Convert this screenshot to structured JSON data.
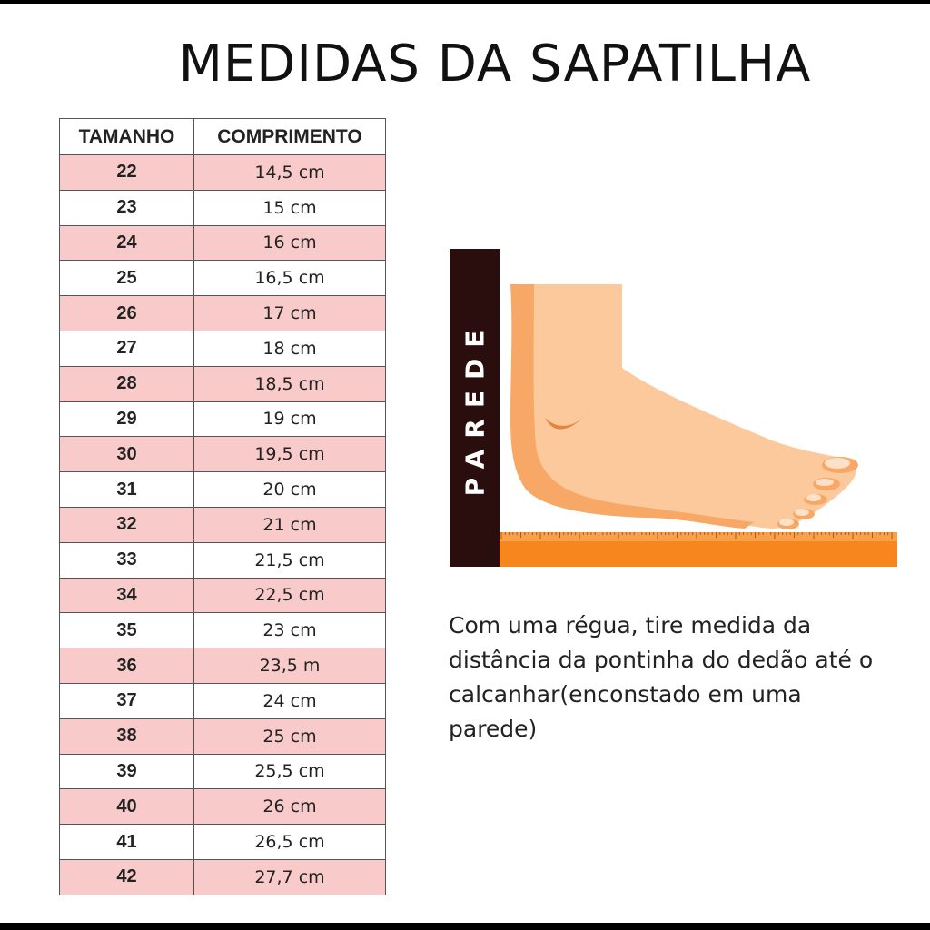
{
  "title": "MEDIDAS DA SAPATILHA",
  "table": {
    "headers": [
      "TAMANHO",
      "COMPRIMENTO"
    ],
    "rows": [
      [
        "22",
        "14,5 cm"
      ],
      [
        "23",
        "15 cm"
      ],
      [
        "24",
        "16 cm"
      ],
      [
        "25",
        "16,5 cm"
      ],
      [
        "26",
        "17 cm"
      ],
      [
        "27",
        "18 cm"
      ],
      [
        "28",
        "18,5 cm"
      ],
      [
        "29",
        "19 cm"
      ],
      [
        "30",
        "19,5 cm"
      ],
      [
        "31",
        "20 cm"
      ],
      [
        "32",
        "21 cm"
      ],
      [
        "33",
        "21,5 cm"
      ],
      [
        "34",
        "22,5 cm"
      ],
      [
        "35",
        "23 cm"
      ],
      [
        "36",
        "23,5 m"
      ],
      [
        "37",
        "24 cm"
      ],
      [
        "38",
        "25 cm"
      ],
      [
        "39",
        "25,5 cm"
      ],
      [
        "40",
        "26 cm"
      ],
      [
        "41",
        "26,5 cm"
      ],
      [
        "42",
        "27,7 cm"
      ]
    ],
    "stripe_color": "#f8caca"
  },
  "illustration": {
    "wall_label": "PAREDE",
    "wall_color": "#2a0d0d",
    "ruler_color": "#f7861f",
    "skin_color": "#fbc99c"
  },
  "instructions": "Com uma régua, tire medida da distância da pontinha do dedão até o calcanhar(enconstado em uma parede)"
}
